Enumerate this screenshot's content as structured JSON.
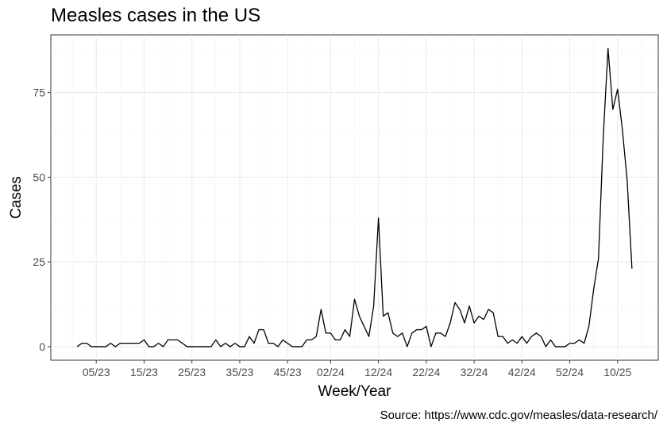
{
  "title": "Measles cases in the US",
  "caption": "Source: https://www.cdc.gov/measles/data-research/",
  "chart_data": {
    "type": "line",
    "title": "Measles cases in the US",
    "xlabel": "Week/Year",
    "ylabel": "Cases",
    "x_tick_labels": [
      "05/23",
      "15/23",
      "25/23",
      "35/23",
      "45/23",
      "02/24",
      "12/24",
      "22/24",
      "32/24",
      "42/24",
      "52/24",
      "10/25"
    ],
    "y_ticks": [
      0,
      25,
      50,
      75
    ],
    "ylim": [
      -4,
      92
    ],
    "grid": true,
    "legend": "none",
    "line_color": "#000000",
    "x_first_week_index": 1,
    "x_tick_week_indices": [
      5,
      15,
      25,
      35,
      45,
      54,
      64,
      74,
      84,
      94,
      104,
      114
    ],
    "values": [
      0,
      1,
      1,
      0,
      0,
      0,
      0,
      1,
      0,
      1,
      1,
      1,
      1,
      1,
      2,
      0,
      0,
      1,
      0,
      2,
      2,
      2,
      1,
      0,
      0,
      0,
      0,
      0,
      0,
      2,
      0,
      1,
      0,
      1,
      0,
      0,
      3,
      1,
      5,
      5,
      1,
      1,
      0,
      2,
      1,
      0,
      0,
      0,
      2,
      2,
      3,
      11,
      4,
      4,
      2,
      2,
      5,
      3,
      14,
      9,
      6,
      3,
      12,
      38,
      9,
      10,
      4,
      3,
      4,
      0,
      4,
      5,
      5,
      6,
      0,
      4,
      4,
      3,
      7,
      13,
      11,
      7,
      12,
      7,
      9,
      8,
      11,
      10,
      3,
      3,
      1,
      2,
      1,
      3,
      1,
      3,
      4,
      3,
      0,
      2,
      0,
      0,
      0,
      1,
      1,
      2,
      1,
      6,
      17,
      26,
      62,
      88,
      70,
      76,
      64,
      49,
      23
    ]
  }
}
